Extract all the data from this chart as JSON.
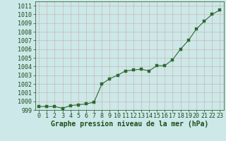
{
  "x": [
    0,
    1,
    2,
    3,
    4,
    5,
    6,
    7,
    8,
    9,
    10,
    11,
    12,
    13,
    14,
    15,
    16,
    17,
    18,
    19,
    20,
    21,
    22,
    23
  ],
  "y": [
    999.4,
    999.4,
    999.4,
    999.2,
    999.5,
    999.6,
    999.7,
    999.9,
    1002.0,
    1002.6,
    1003.0,
    1003.5,
    1003.6,
    1003.7,
    1003.5,
    1004.1,
    1004.1,
    1004.8,
    1006.0,
    1007.0,
    1008.3,
    1009.2,
    1010.0,
    1010.5
  ],
  "line_color": "#2d6a2d",
  "marker": "s",
  "marker_size": 2.5,
  "bg_color": "#cce8e8",
  "grid_color": "#aaaaaa",
  "xlabel": "Graphe pression niveau de la mer (hPa)",
  "xlabel_color": "#1a4d1a",
  "tick_color": "#1a4d1a",
  "ylim": [
    999.0,
    1011.5
  ],
  "xlim": [
    -0.5,
    23.5
  ],
  "yticks": [
    999,
    1000,
    1001,
    1002,
    1003,
    1004,
    1005,
    1006,
    1007,
    1008,
    1009,
    1010,
    1011
  ],
  "xticks": [
    0,
    1,
    2,
    3,
    4,
    5,
    6,
    7,
    8,
    9,
    10,
    11,
    12,
    13,
    14,
    15,
    16,
    17,
    18,
    19,
    20,
    21,
    22,
    23
  ],
  "tick_fontsize": 6,
  "xlabel_fontsize": 7
}
